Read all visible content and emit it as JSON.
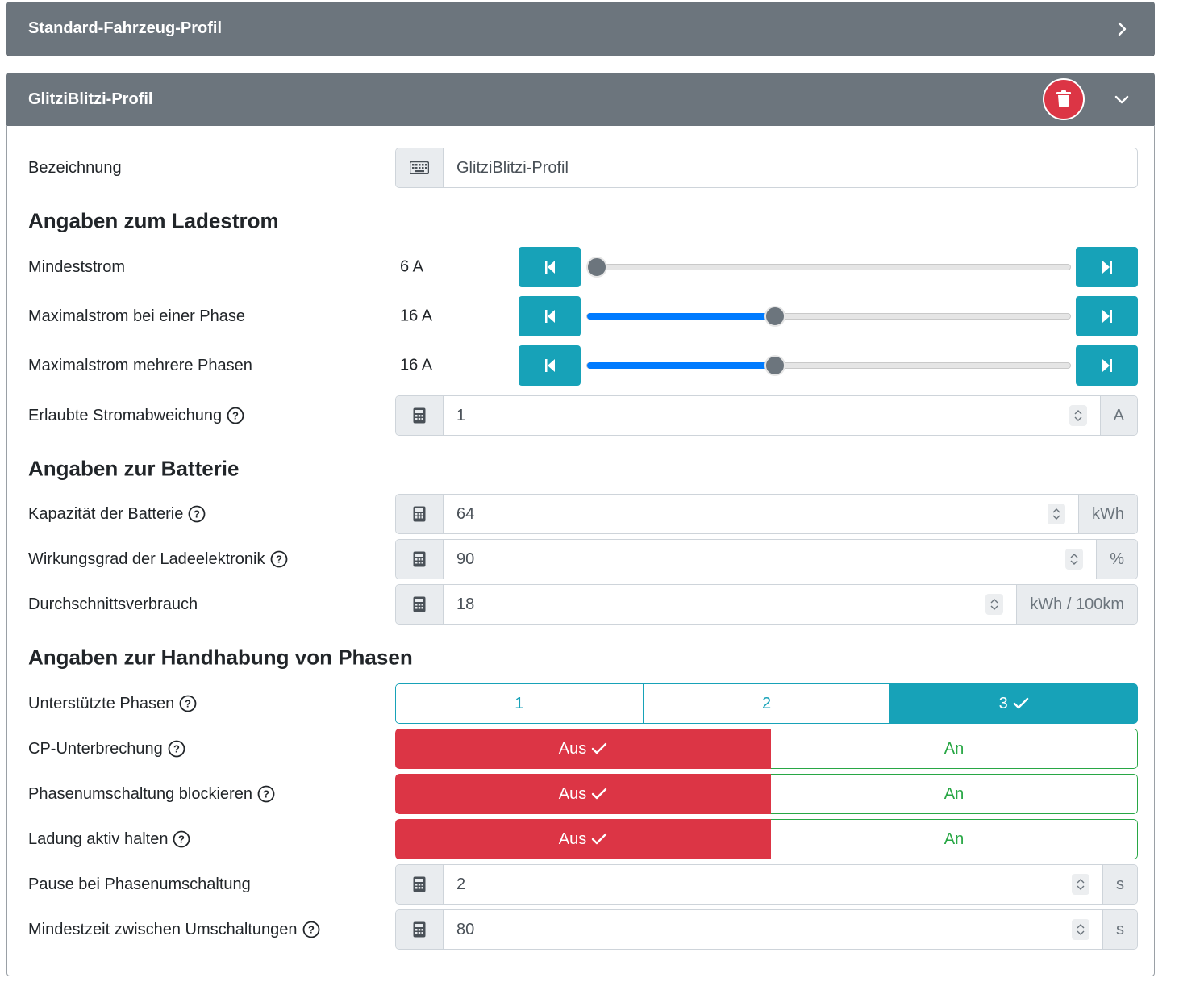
{
  "profiles": {
    "standard_title": "Standard-Fahrzeug-Profil",
    "glitzi_title": "GlitziBlitzi-Profil"
  },
  "form": {
    "bezeichnung": {
      "label": "Bezeichnung",
      "value": "GlitziBlitzi-Profil"
    },
    "section_ladestrom": "Angaben zum Ladestrom",
    "mindeststrom": {
      "label": "Mindeststrom",
      "value": "6 A",
      "slider_fraction": 0.0
    },
    "max_einphasig": {
      "label": "Maximalstrom bei einer Phase",
      "value": "16 A",
      "slider_fraction": 0.385
    },
    "max_mehrphasig": {
      "label": "Maximalstrom mehrere Phasen",
      "value": "16 A",
      "slider_fraction": 0.385
    },
    "stromabweichung": {
      "label": "Erlaubte Stromabweichung",
      "value": "1",
      "unit": "A"
    },
    "section_batterie": "Angaben zur Batterie",
    "kapazitaet": {
      "label": "Kapazität der Batterie",
      "value": "64",
      "unit": "kWh"
    },
    "wirkungsgrad": {
      "label": "Wirkungsgrad der Ladeelektronik",
      "value": "90",
      "unit": "%"
    },
    "verbrauch": {
      "label": "Durchschnittsverbrauch",
      "value": "18",
      "unit": "kWh / 100km"
    },
    "section_phasen": "Angaben zur Handhabung von Phasen",
    "phasen": {
      "label": "Unterstützte Phasen",
      "options": [
        "1",
        "2",
        "3"
      ],
      "selected": "3"
    },
    "cp_unterbrechung": {
      "label": "CP-Unterbrechung",
      "off": "Aus",
      "on": "An",
      "selected": "Aus"
    },
    "phasen_blockieren": {
      "label": "Phasenumschaltung blockieren",
      "off": "Aus",
      "on": "An",
      "selected": "Aus"
    },
    "ladung_aktiv": {
      "label": "Ladung aktiv halten",
      "off": "Aus",
      "on": "An",
      "selected": "Aus"
    },
    "pause": {
      "label": "Pause bei Phasenumschaltung",
      "value": "2",
      "unit": "s"
    },
    "mindestzeit": {
      "label": "Mindestzeit zwischen Umschaltungen",
      "value": "80",
      "unit": "s"
    }
  },
  "colors": {
    "header_bg": "#6c757d",
    "info": "#17a2b8",
    "danger": "#dc3545",
    "success": "#28a745",
    "slider_fill": "#007bff"
  },
  "icons": [
    "chevron-right-icon",
    "chevron-down-icon",
    "trash-icon",
    "keyboard-icon",
    "calculator-icon",
    "help-icon",
    "skip-start-icon",
    "skip-end-icon",
    "check-icon",
    "spinner-arrows-icon"
  ]
}
